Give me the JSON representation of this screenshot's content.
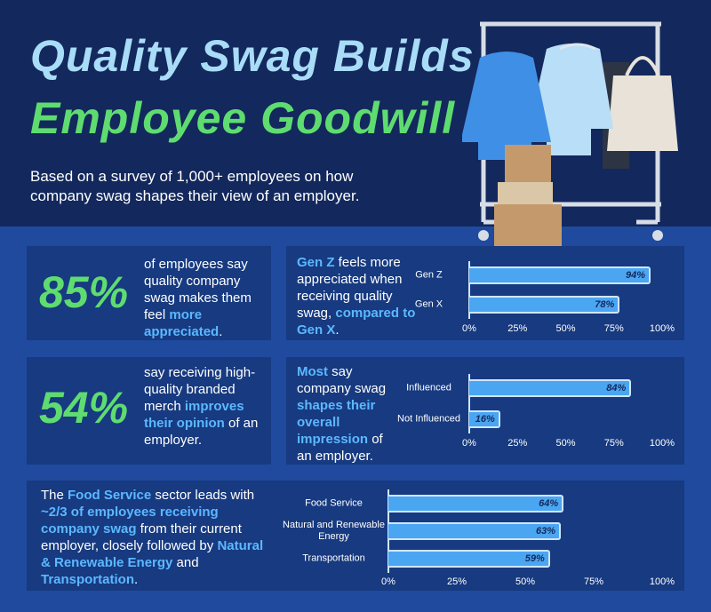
{
  "header": {
    "title_line_1": "Quality Swag Builds",
    "title_line_2": "Employee Goodwill",
    "subtitle": "Based on a survey of 1,000+ employees on how company swag shapes their view of an employer."
  },
  "stats": [
    {
      "figure": "85%",
      "text": [
        {
          "text": "of employees say quality company swag makes them feel "
        },
        {
          "text": "more appreciated",
          "bold": true
        },
        {
          "text": "."
        }
      ]
    },
    {
      "figure": "54%",
      "text": [
        {
          "text": "say receiving high-quality branded merch "
        },
        {
          "text": "improves their opinion",
          "bold": true
        },
        {
          "text": " of an employer."
        }
      ]
    }
  ],
  "chart_data": [
    {
      "type": "bar",
      "orientation": "horizontal",
      "description": [
        {
          "text": "Gen Z",
          "bold": true
        },
        {
          "text": " feels more appreciated when receiving quality swag, "
        },
        {
          "text": "compared to Gen X",
          "bold": true
        },
        {
          "text": "."
        }
      ],
      "categories": [
        "Gen Z",
        "Gen X"
      ],
      "values": [
        94,
        78
      ],
      "value_labels": [
        "94%",
        "78%"
      ],
      "color": "#4ba6f2",
      "xlim": [
        0,
        100
      ],
      "xticks": [
        {
          "value": 0,
          "label": "0%"
        },
        {
          "value": 25,
          "label": "25%"
        },
        {
          "value": 50,
          "label": "50%"
        },
        {
          "value": 75,
          "label": "75%"
        },
        {
          "value": 100,
          "label": "100%"
        }
      ]
    },
    {
      "type": "bar",
      "orientation": "horizontal",
      "description": [
        {
          "text": "Most",
          "bold": true
        },
        {
          "text": " say company swag "
        },
        {
          "text": "shapes their overall impression",
          "bold": true
        },
        {
          "text": " of an employer."
        }
      ],
      "categories": [
        "Influenced",
        "Not Influenced"
      ],
      "values": [
        84,
        16
      ],
      "value_labels": [
        "84%",
        "16%"
      ],
      "color": "#4ba6f2",
      "xlim": [
        0,
        100
      ],
      "xticks": [
        {
          "value": 0,
          "label": "0%"
        },
        {
          "value": 25,
          "label": "25%"
        },
        {
          "value": 50,
          "label": "50%"
        },
        {
          "value": 75,
          "label": "75%"
        },
        {
          "value": 100,
          "label": "100%"
        }
      ]
    },
    {
      "type": "bar",
      "orientation": "horizontal",
      "description": [
        {
          "text": "The "
        },
        {
          "text": "Food Service",
          "bold": true
        },
        {
          "text": " sector leads with "
        },
        {
          "text": "~2/3 of employees receiving company swag",
          "bold": true
        },
        {
          "text": " from their current employer, closely followed by "
        },
        {
          "text": "Natural & Renewable Energy",
          "bold": true
        },
        {
          "text": " and "
        },
        {
          "text": "Transportation",
          "bold": true
        },
        {
          "text": "."
        }
      ],
      "categories": [
        "Food Service",
        "Natural and Renewable Energy",
        "Transportation"
      ],
      "values": [
        64,
        63,
        59
      ],
      "value_labels": [
        "64%",
        "63%",
        "59%"
      ],
      "color": "#4ba6f2",
      "xlim": [
        0,
        100
      ],
      "xticks": [
        {
          "value": 0,
          "label": "0%"
        },
        {
          "value": 25,
          "label": "25%"
        },
        {
          "value": 50,
          "label": "50%"
        },
        {
          "value": 75,
          "label": "75%"
        },
        {
          "value": 100,
          "label": "100%"
        }
      ]
    }
  ]
}
